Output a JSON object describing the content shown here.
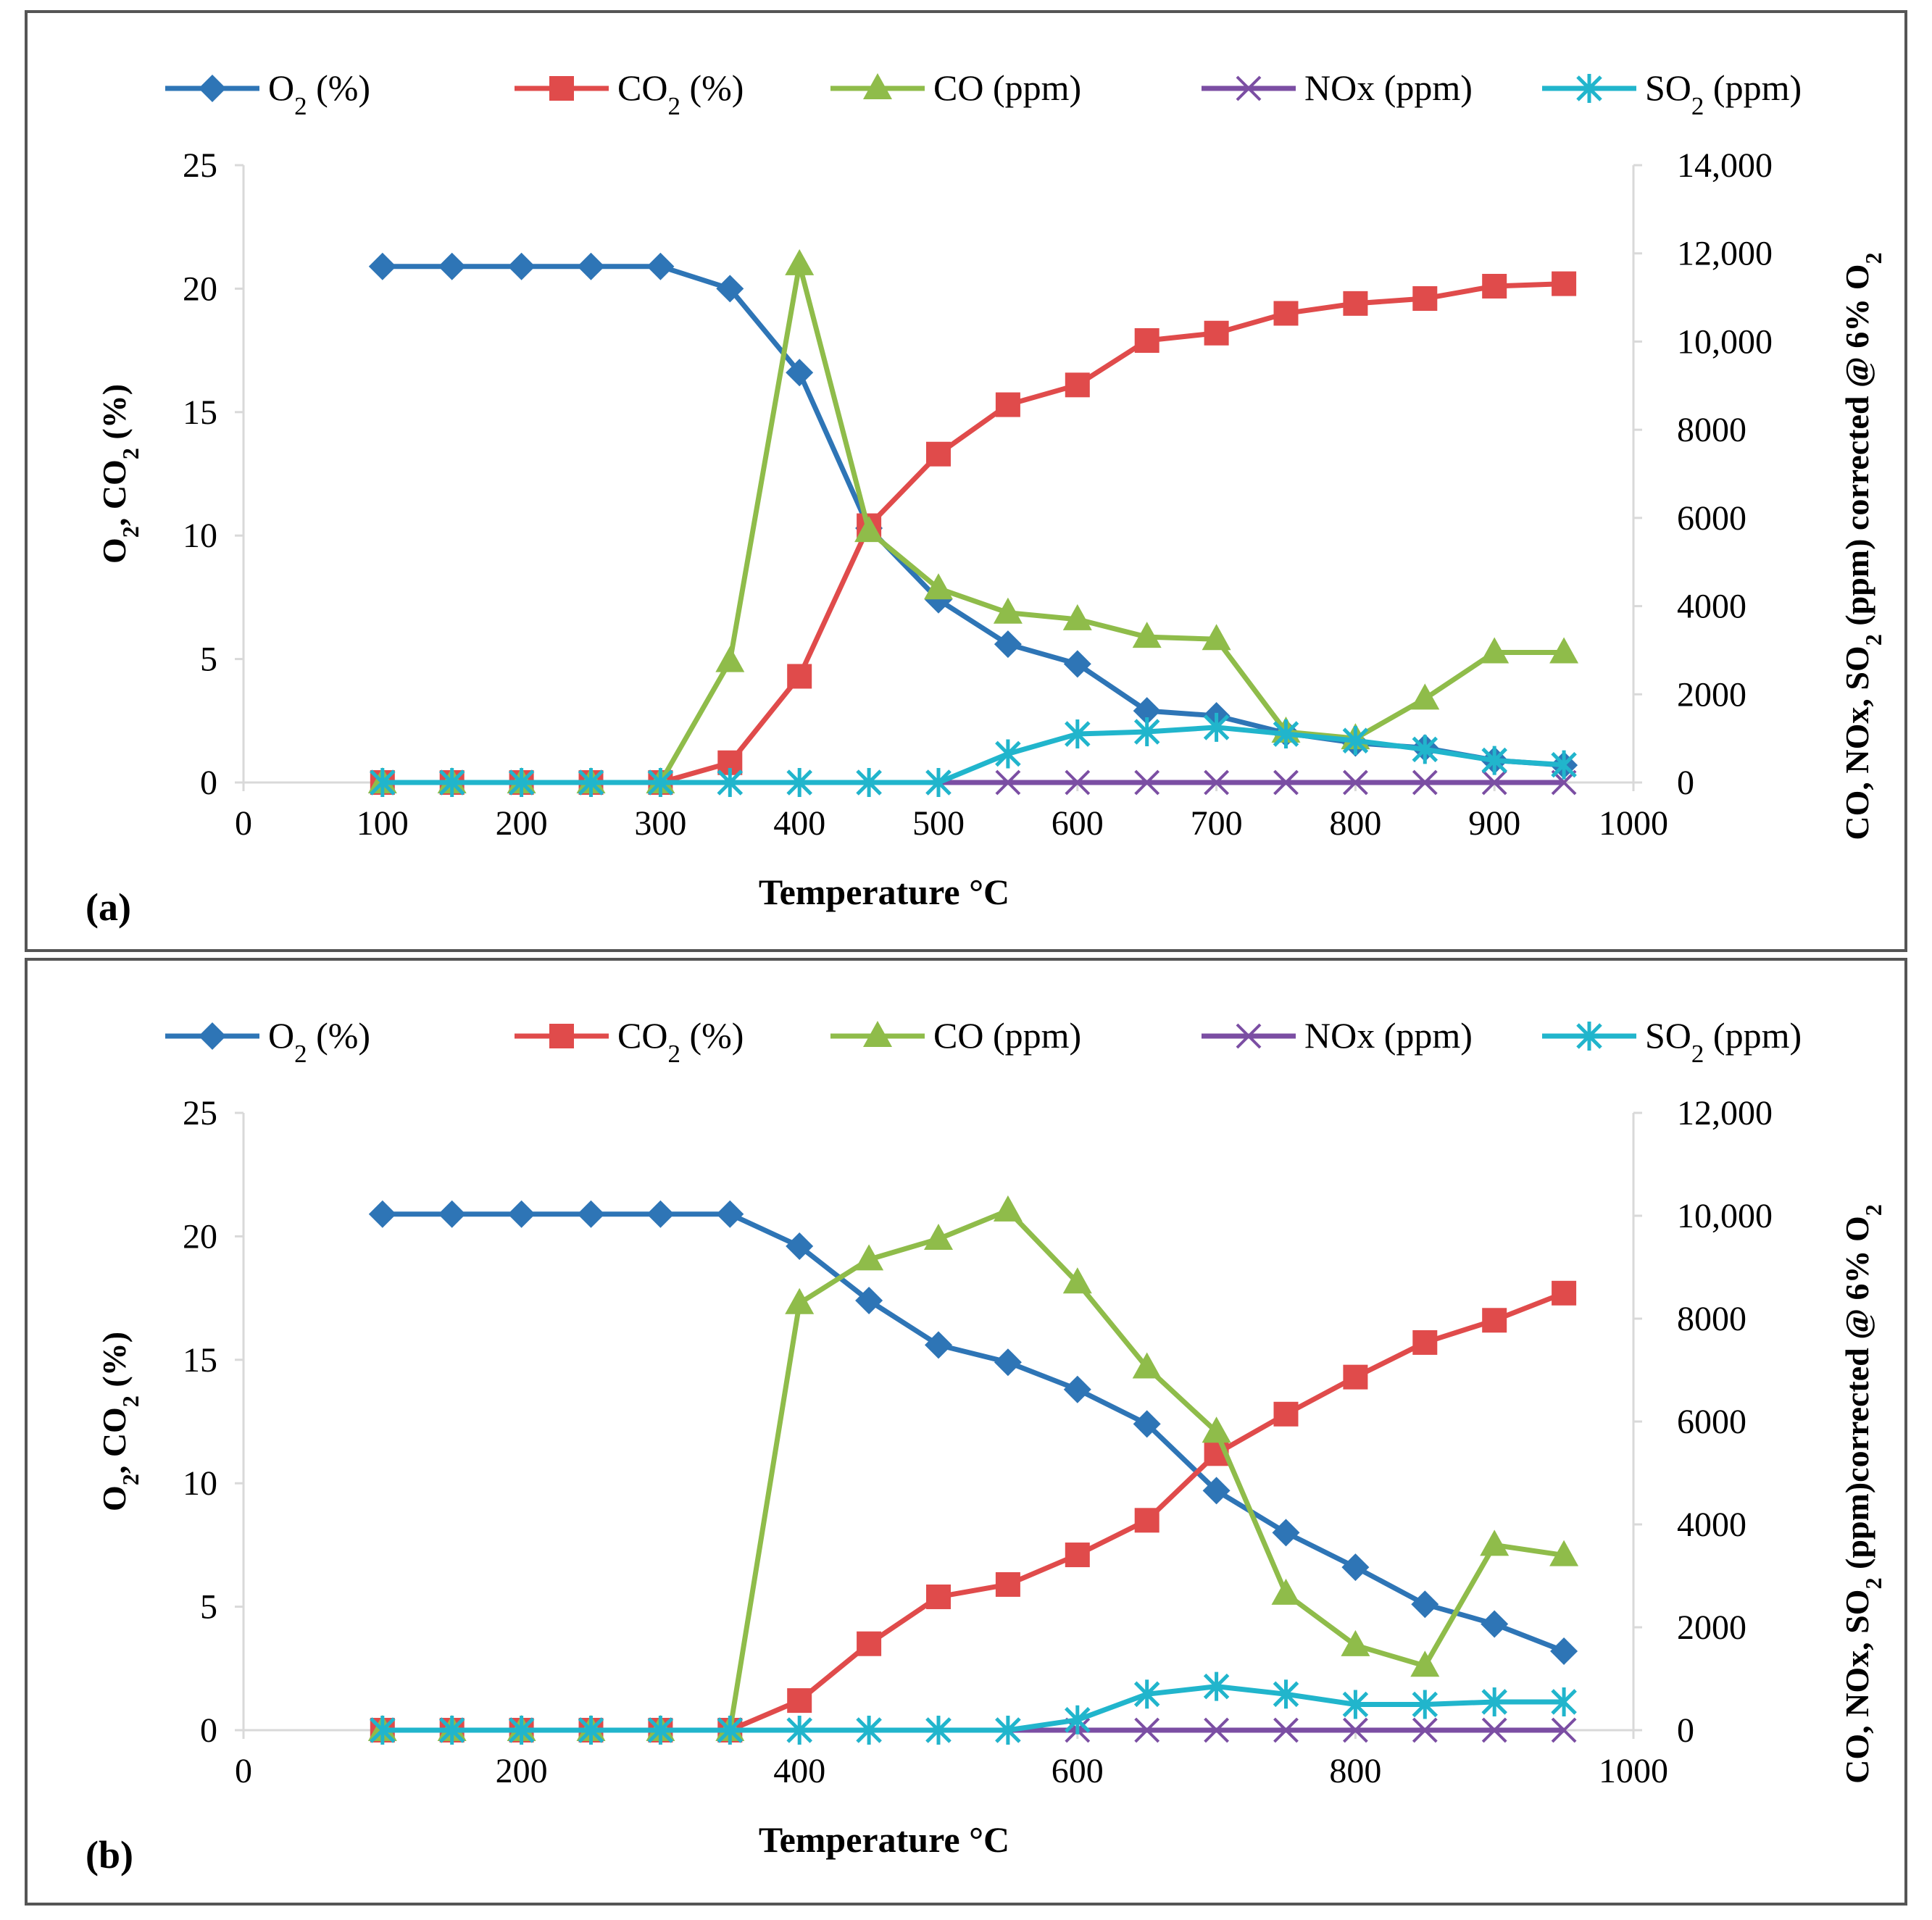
{
  "chart_data": [
    {
      "type": "line",
      "panel_label": "(a)",
      "xlabel": "Temperature °C",
      "ylabel_left": "O₂, CO₂ (%)",
      "ylabel_right": "CO, NOx, SO₂ (ppm) corrected @ 6% O₂",
      "xlim": [
        0,
        1000
      ],
      "x_ticks": [
        "0",
        "100",
        "200",
        "300",
        "400",
        "500",
        "600",
        "700",
        "800",
        "900",
        "1000"
      ],
      "x_tick_values": [
        0,
        100,
        200,
        300,
        400,
        500,
        600,
        700,
        800,
        900,
        1000
      ],
      "ylim_left": [
        0,
        25
      ],
      "y_left_ticks": [
        "0",
        "5",
        "10",
        "15",
        "20",
        "25"
      ],
      "y_left_tick_values": [
        0,
        5,
        10,
        15,
        20,
        25
      ],
      "ylim_right": [
        0,
        14000
      ],
      "y_right_ticks": [
        "0",
        "2000",
        "4000",
        "6000",
        "8000",
        "10,000",
        "12,000",
        "14,000"
      ],
      "y_right_tick_values": [
        0,
        2000,
        4000,
        6000,
        8000,
        10000,
        12000,
        14000
      ],
      "legend": [
        "O₂ (%)",
        "CO₂ (%)",
        "CO (ppm)",
        "NOx (ppm)",
        "SO₂ (ppm)"
      ],
      "x": [
        100,
        150,
        200,
        250,
        300,
        350,
        400,
        450,
        500,
        550,
        600,
        650,
        700,
        750,
        800,
        850,
        900,
        950
      ],
      "series": [
        {
          "name": "O₂ (%)",
          "axis": "left",
          "color": "#2e75b6",
          "marker": "diamond",
          "values": [
            20.9,
            20.9,
            20.9,
            20.9,
            20.9,
            20.0,
            16.6,
            10.3,
            7.4,
            5.6,
            4.8,
            2.9,
            2.7,
            2.0,
            1.6,
            1.4,
            0.9,
            0.7
          ]
        },
        {
          "name": "CO₂ (%)",
          "axis": "left",
          "color": "#e04b4b",
          "marker": "square",
          "values": [
            0,
            0,
            0,
            0,
            0,
            0.8,
            4.3,
            10.4,
            13.3,
            15.3,
            16.1,
            17.9,
            18.2,
            19.0,
            19.4,
            19.6,
            20.1,
            20.2
          ]
        },
        {
          "name": "CO (ppm)",
          "axis": "right",
          "color": "#8fbc4a",
          "marker": "triangle",
          "values": [
            0,
            0,
            0,
            0,
            0,
            2750,
            11750,
            5700,
            4400,
            3850,
            3700,
            3300,
            3250,
            1150,
            1000,
            1900,
            2950,
            2950
          ]
        },
        {
          "name": "NOx (ppm)",
          "axis": "right",
          "color": "#7b4ea3",
          "marker": "x",
          "values": [
            0,
            0,
            0,
            0,
            0,
            0,
            0,
            0,
            0,
            0,
            0,
            0,
            0,
            0,
            0,
            0,
            0,
            0
          ]
        },
        {
          "name": "SO₂ (ppm)",
          "axis": "right",
          "color": "#21b5cc",
          "marker": "asterisk",
          "values": [
            0,
            0,
            0,
            0,
            0,
            0,
            0,
            0,
            0,
            650,
            1100,
            1150,
            1250,
            1100,
            950,
            750,
            500,
            400
          ]
        }
      ]
    },
    {
      "type": "line",
      "panel_label": "(b)",
      "xlabel": "Temperature °C",
      "ylabel_left": "O₂, CO₂ (%)",
      "ylabel_right": "CO, NOx, SO₂ (ppm)corrected @ 6% O₂",
      "xlim": [
        0,
        1000
      ],
      "x_ticks": [
        "0",
        "200",
        "400",
        "600",
        "800",
        "1000"
      ],
      "x_tick_values": [
        0,
        200,
        400,
        600,
        800,
        1000
      ],
      "ylim_left": [
        0,
        25
      ],
      "y_left_ticks": [
        "0",
        "5",
        "10",
        "15",
        "20",
        "25"
      ],
      "y_left_tick_values": [
        0,
        5,
        10,
        15,
        20,
        25
      ],
      "ylim_right": [
        0,
        12000
      ],
      "y_right_ticks": [
        "0",
        "2000",
        "4000",
        "6000",
        "8000",
        "10,000",
        "12,000"
      ],
      "y_right_tick_values": [
        0,
        2000,
        4000,
        6000,
        8000,
        10000,
        12000
      ],
      "legend": [
        "O₂ (%)",
        "CO₂ (%)",
        "CO (ppm)",
        "NOx (ppm)",
        "SO₂ (ppm)"
      ],
      "x": [
        100,
        150,
        200,
        250,
        300,
        350,
        400,
        450,
        500,
        550,
        600,
        650,
        700,
        750,
        800,
        850,
        900,
        950
      ],
      "series": [
        {
          "name": "O₂ (%)",
          "axis": "left",
          "color": "#2e75b6",
          "marker": "diamond",
          "values": [
            20.9,
            20.9,
            20.9,
            20.9,
            20.9,
            20.9,
            19.6,
            17.4,
            15.6,
            14.9,
            13.8,
            12.4,
            9.7,
            8.0,
            6.6,
            5.1,
            4.3,
            3.2
          ]
        },
        {
          "name": "CO₂ (%)",
          "axis": "left",
          "color": "#e04b4b",
          "marker": "square",
          "values": [
            0,
            0,
            0,
            0,
            0,
            0,
            1.2,
            3.5,
            5.4,
            5.9,
            7.1,
            8.5,
            11.2,
            12.8,
            14.3,
            15.7,
            16.6,
            17.7
          ]
        },
        {
          "name": "CO (ppm)",
          "axis": "right",
          "color": "#8fbc4a",
          "marker": "triangle",
          "values": [
            0,
            0,
            0,
            0,
            0,
            0,
            8300,
            9150,
            9550,
            10100,
            8700,
            7050,
            5800,
            2650,
            1650,
            1250,
            3600,
            3400
          ]
        },
        {
          "name": "NOx (ppm)",
          "axis": "right",
          "color": "#7b4ea3",
          "marker": "x",
          "values": [
            0,
            0,
            0,
            0,
            0,
            0,
            0,
            0,
            0,
            0,
            0,
            0,
            0,
            0,
            0,
            0,
            0,
            0
          ]
        },
        {
          "name": "SO₂ (ppm)",
          "axis": "right",
          "color": "#21b5cc",
          "marker": "asterisk",
          "values": [
            0,
            0,
            0,
            0,
            0,
            0,
            0,
            0,
            0,
            0,
            200,
            700,
            850,
            700,
            500,
            500,
            550,
            550
          ]
        }
      ]
    }
  ]
}
